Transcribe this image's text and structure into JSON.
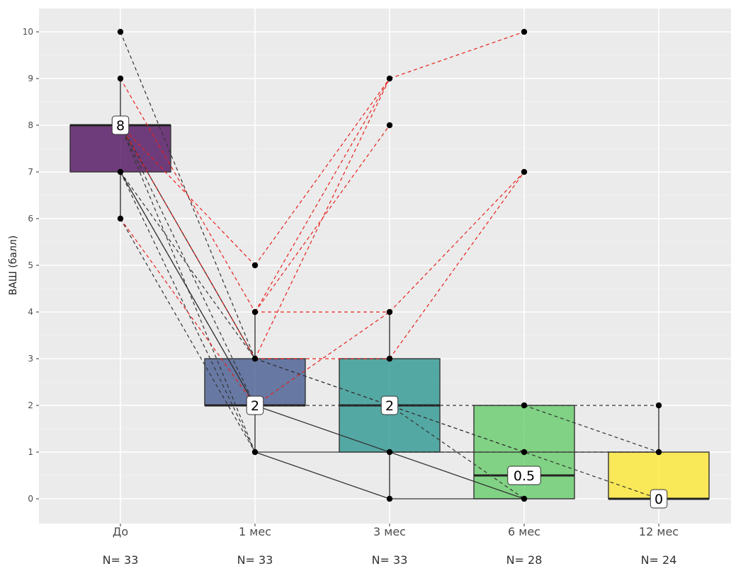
{
  "chart_data": {
    "type": "boxplot",
    "ylabel": "ВАШ (балл)",
    "ylim": [
      -0.5,
      10.5
    ],
    "yticks": [
      0,
      1,
      2,
      3,
      4,
      5,
      6,
      7,
      8,
      9,
      10
    ],
    "grid": true,
    "categories": [
      "До",
      "1 мес",
      "3 мес",
      "6 мес",
      "12 мес"
    ],
    "n_labels": [
      "N= 33",
      "N= 33",
      "N= 33",
      "N= 28",
      "N= 24"
    ],
    "boxes": [
      {
        "q1": 7,
        "median": 8,
        "q3": 8,
        "lower": 6,
        "upper": 9,
        "median_label": "8",
        "fill": "#440154"
      },
      {
        "q1": 2,
        "median": 2,
        "q3": 3,
        "lower": 1,
        "upper": 4,
        "median_label": "2",
        "fill": "#3b528b"
      },
      {
        "q1": 1,
        "median": 2,
        "q3": 3,
        "lower": 0,
        "upper": 4,
        "median_label": "2",
        "fill": "#21918c"
      },
      {
        "q1": 0,
        "median": 0.5,
        "q3": 2,
        "lower": 0,
        "upper": 2,
        "median_label": "0.5",
        "fill": "#5ec962"
      },
      {
        "q1": 0,
        "median": 0,
        "q3": 1,
        "lower": 0,
        "upper": 2,
        "median_label": "0",
        "fill": "#fde725"
      }
    ],
    "points": [
      {
        "x": 0,
        "y": 10
      },
      {
        "x": 0,
        "y": 9
      },
      {
        "x": 0,
        "y": 8
      },
      {
        "x": 0,
        "y": 7
      },
      {
        "x": 0,
        "y": 6
      },
      {
        "x": 1,
        "y": 5
      },
      {
        "x": 1,
        "y": 4
      },
      {
        "x": 1,
        "y": 3
      },
      {
        "x": 1,
        "y": 2
      },
      {
        "x": 1,
        "y": 1
      },
      {
        "x": 2,
        "y": 9
      },
      {
        "x": 2,
        "y": 8
      },
      {
        "x": 2,
        "y": 4
      },
      {
        "x": 2,
        "y": 3
      },
      {
        "x": 2,
        "y": 2
      },
      {
        "x": 2,
        "y": 1
      },
      {
        "x": 2,
        "y": 0
      },
      {
        "x": 3,
        "y": 10
      },
      {
        "x": 3,
        "y": 7
      },
      {
        "x": 3,
        "y": 2
      },
      {
        "x": 3,
        "y": 1
      },
      {
        "x": 3,
        "y": 0
      },
      {
        "x": 4,
        "y": 2
      },
      {
        "x": 4,
        "y": 1
      },
      {
        "x": 4,
        "y": 0
      }
    ],
    "trajectories_red": [
      {
        "x1": 0,
        "y1": 9,
        "x2": 1,
        "y2": 4
      },
      {
        "x1": 0,
        "y1": 8,
        "x2": 1,
        "y2": 5
      },
      {
        "x1": 0,
        "y1": 8,
        "x2": 1,
        "y2": 3
      },
      {
        "x1": 0,
        "y1": 6,
        "x2": 1,
        "y2": 2
      },
      {
        "x1": 1,
        "y1": 5,
        "x2": 2,
        "y2": 9
      },
      {
        "x1": 1,
        "y1": 4,
        "x2": 2,
        "y2": 9
      },
      {
        "x1": 1,
        "y1": 4,
        "x2": 2,
        "y2": 8
      },
      {
        "x1": 1,
        "y1": 4,
        "x2": 2,
        "y2": 4
      },
      {
        "x1": 1,
        "y1": 3,
        "x2": 2,
        "y2": 9
      },
      {
        "x1": 1,
        "y1": 3,
        "x2": 2,
        "y2": 3
      },
      {
        "x1": 1,
        "y1": 2,
        "x2": 2,
        "y2": 4
      },
      {
        "x1": 2,
        "y1": 9,
        "x2": 3,
        "y2": 10
      },
      {
        "x1": 2,
        "y1": 3,
        "x2": 3,
        "y2": 7
      },
      {
        "x1": 2,
        "y1": 4,
        "x2": 3,
        "y2": 7
      }
    ],
    "trajectories_dashed": [
      {
        "x1": 0,
        "y1": 10,
        "x2": 1,
        "y2": 3
      },
      {
        "x1": 0,
        "y1": 8,
        "x2": 1,
        "y2": 2
      },
      {
        "x1": 0,
        "y1": 8,
        "x2": 1,
        "y2": 1
      },
      {
        "x1": 0,
        "y1": 7,
        "x2": 1,
        "y2": 3
      },
      {
        "x1": 0,
        "y1": 7,
        "x2": 1,
        "y2": 2
      },
      {
        "x1": 0,
        "y1": 7,
        "x2": 1,
        "y2": 1
      },
      {
        "x1": 0,
        "y1": 6,
        "x2": 1,
        "y2": 1
      },
      {
        "x1": 1,
        "y1": 3,
        "x2": 3,
        "y2": 1
      },
      {
        "x1": 1,
        "y1": 2,
        "x2": 4,
        "y2": 2
      },
      {
        "x1": 1,
        "y1": 3,
        "x2": 4,
        "y2": 0
      },
      {
        "x1": 2,
        "y1": 2,
        "x2": 3,
        "y2": 0
      },
      {
        "x1": 3,
        "y1": 2,
        "x2": 4,
        "y2": 1
      },
      {
        "x1": 2,
        "y1": 1,
        "x2": 4,
        "y2": 1
      }
    ],
    "trajectories_solid": [
      {
        "x1": 1,
        "y1": 2,
        "x2": 3,
        "y2": 0
      },
      {
        "x1": 1,
        "y1": 1,
        "x2": 2,
        "y2": 0
      },
      {
        "x1": 2,
        "y1": 0,
        "x2": 3,
        "y2": 0
      },
      {
        "x1": 2,
        "y1": 1,
        "x2": 3,
        "y2": 1
      },
      {
        "x1": 3,
        "y1": 1,
        "x2": 4,
        "y2": 1
      },
      {
        "x1": 0,
        "y1": 7,
        "x2": 1,
        "y2": 2
      },
      {
        "x1": 0,
        "y1": 8,
        "x2": 1,
        "y2": 3
      },
      {
        "x1": 1,
        "y1": 1,
        "x2": 2,
        "y2": 1
      }
    ]
  }
}
